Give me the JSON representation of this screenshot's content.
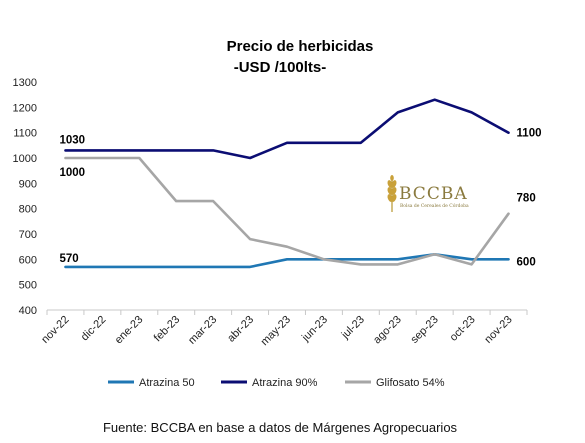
{
  "chart_data": {
    "type": "line",
    "title": "Precio de herbicidas",
    "subtitle": "-USD /100lts-",
    "categories": [
      "nov-22",
      "dic-22",
      "ene-23",
      "feb-23",
      "mar-23",
      "abr-23",
      "may-23",
      "jun-23",
      "jul-23",
      "ago-23",
      "sep-23",
      "oct-23",
      "nov-23"
    ],
    "ylim": [
      400,
      1300
    ],
    "yticks": [
      400,
      500,
      600,
      700,
      800,
      900,
      1000,
      1100,
      1200,
      1300
    ],
    "grid": false,
    "legend_position": "bottom",
    "series": [
      {
        "name": "Atrazina 50",
        "color": "#1f77b4",
        "values": [
          570,
          570,
          570,
          570,
          570,
          570,
          600,
          600,
          600,
          600,
          620,
          600,
          600
        ],
        "start_label": "570",
        "end_label": "600"
      },
      {
        "name": "Atrazina 90%",
        "color": "#0b0d73",
        "values": [
          1030,
          1030,
          1030,
          1030,
          1030,
          1000,
          1060,
          1060,
          1060,
          1180,
          1230,
          1180,
          1100
        ],
        "start_label": "1030",
        "end_label": "1100"
      },
      {
        "name": "Glifosato 54%",
        "color": "#a6a6a6",
        "values": [
          1000,
          1000,
          1000,
          830,
          830,
          680,
          650,
          600,
          580,
          580,
          620,
          580,
          780
        ],
        "start_label": "1000",
        "end_label": "780"
      }
    ]
  },
  "logo": {
    "name": "BCCBA",
    "subtitle": "Bolsa de Cereales de Córdoba",
    "color": "#8a7a3e",
    "icon": "wheat-icon"
  },
  "source": "Fuente: BCCBA en base a datos de Márgenes Agropecuarios"
}
